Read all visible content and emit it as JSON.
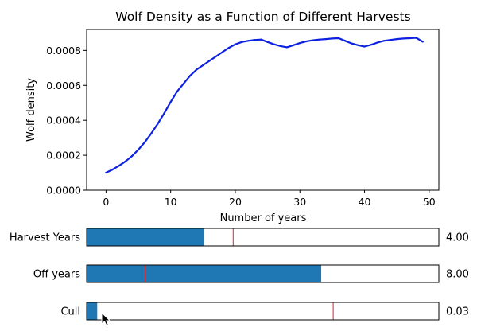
{
  "chart_data": {
    "type": "line",
    "title": "Wolf Density as a Function of Different Harvests",
    "xlabel": "Number of years",
    "ylabel": "Wolf density",
    "xlim": [
      -3,
      51.5
    ],
    "ylim": [
      0,
      0.00092
    ],
    "x_ticks": [
      0,
      10,
      20,
      30,
      40,
      50
    ],
    "x_tick_labels": [
      "0",
      "10",
      "20",
      "30",
      "40",
      "50"
    ],
    "y_ticks": [
      0,
      0.0002,
      0.0004,
      0.0006,
      0.0008
    ],
    "y_tick_labels": [
      "0.0000",
      "0.0002",
      "0.0004",
      "0.0006",
      "0.0008"
    ],
    "grid": false,
    "series": [
      {
        "color": "#0d21e0",
        "x": [
          0,
          1,
          2,
          3,
          4,
          5,
          6,
          7,
          8,
          9,
          10,
          11,
          12,
          13,
          14,
          15,
          16,
          17,
          18,
          19,
          20,
          21,
          22,
          23,
          24,
          25,
          26,
          27,
          28,
          29,
          30,
          31,
          32,
          33,
          34,
          35,
          36,
          37,
          38,
          39,
          40,
          41,
          42,
          43,
          44,
          45,
          46,
          47,
          48,
          49
        ],
        "y": [
          0.0001,
          0.000118,
          0.00014,
          0.000165,
          0.000195,
          0.000232,
          0.000275,
          0.000325,
          0.00038,
          0.00044,
          0.000505,
          0.000565,
          0.00061,
          0.000655,
          0.00069,
          0.000715,
          0.00074,
          0.000765,
          0.00079,
          0.000815,
          0.000835,
          0.000848,
          0.000855,
          0.00086,
          0.000862,
          0.000848,
          0.000835,
          0.000825,
          0.000818,
          0.00083,
          0.000842,
          0.000852,
          0.000858,
          0.000862,
          0.000865,
          0.000868,
          0.00087,
          0.000855,
          0.00084,
          0.00083,
          0.000822,
          0.000832,
          0.000845,
          0.000855,
          0.00086,
          0.000865,
          0.000868,
          0.00087,
          0.000872,
          0.00085
        ]
      }
    ]
  },
  "sliders": [
    {
      "label": "Harvest Years",
      "value_text": "4.00",
      "fraction": 0.333,
      "initial_fraction": 0.416
    },
    {
      "label": "Off years",
      "value_text": "8.00",
      "fraction": 0.666,
      "initial_fraction": 0.166
    },
    {
      "label": "Cull",
      "value_text": "0.03",
      "fraction": 0.03,
      "initial_fraction": 0.7
    }
  ],
  "colors": {
    "slider_fill": "#1f77b4",
    "init_line": "#d62728",
    "line": "#0d21e0"
  },
  "cursor_icon": "arrow-cursor-icon"
}
